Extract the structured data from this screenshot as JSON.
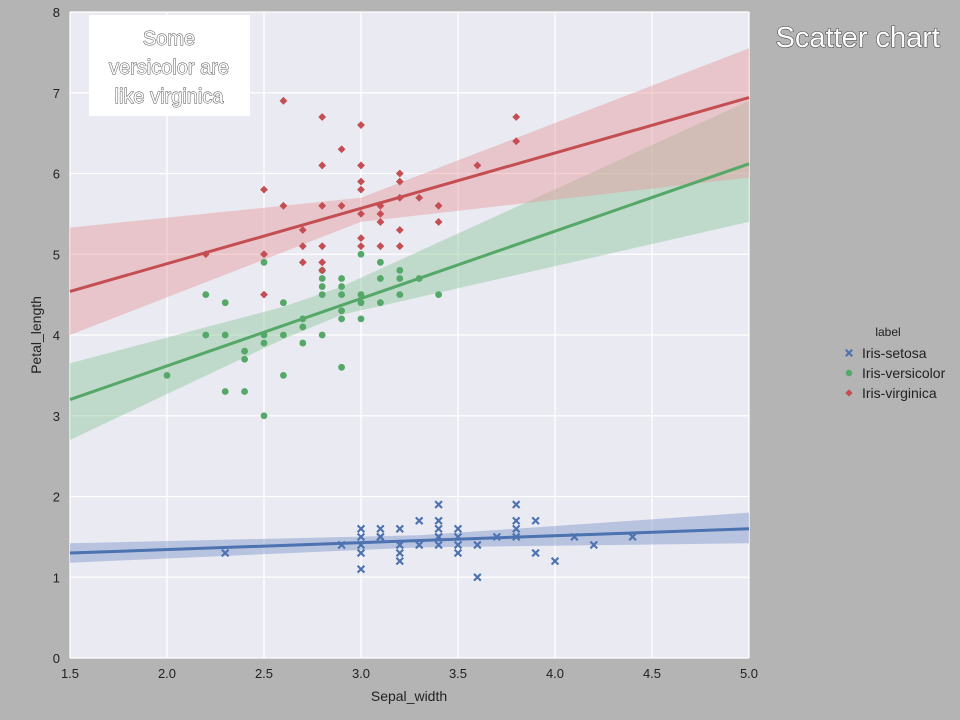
{
  "page_title": "Scatter chart",
  "annotation": {
    "lines": [
      "Some",
      "versicolor are",
      "like virginica"
    ]
  },
  "chart_data": {
    "type": "scatter",
    "title": "",
    "xlabel": "Sepal_width",
    "ylabel": "Petal_length",
    "xlim": [
      1.5,
      5.0
    ],
    "ylim": [
      0,
      8
    ],
    "xticks": [
      1.5,
      2.0,
      2.5,
      3.0,
      3.5,
      4.0,
      4.5,
      5.0
    ],
    "xtick_labels": [
      "1.5",
      "2.0",
      "2.5",
      "3.0",
      "3.5",
      "4.0",
      "4.5",
      "5.0"
    ],
    "yticks": [
      0,
      1,
      2,
      3,
      4,
      5,
      6,
      7,
      8
    ],
    "ytick_labels": [
      "0",
      "1",
      "2",
      "3",
      "4",
      "5",
      "6",
      "7",
      "8"
    ],
    "grid": true,
    "legend": {
      "title": "label",
      "placement": "right"
    },
    "series": [
      {
        "name": "Iris-setosa",
        "marker": "x",
        "color": "#4c72b0",
        "band_color": "#7d95c9",
        "points": [
          [
            2.3,
            1.3
          ],
          [
            2.9,
            1.4
          ],
          [
            3.0,
            1.6
          ],
          [
            3.0,
            1.4
          ],
          [
            3.0,
            1.3
          ],
          [
            3.0,
            1.1
          ],
          [
            3.0,
            1.5
          ],
          [
            3.1,
            1.5
          ],
          [
            3.1,
            1.6
          ],
          [
            3.1,
            1.5
          ],
          [
            3.2,
            1.6
          ],
          [
            3.2,
            1.3
          ],
          [
            3.2,
            1.2
          ],
          [
            3.2,
            1.4
          ],
          [
            3.3,
            1.7
          ],
          [
            3.3,
            1.4
          ],
          [
            3.4,
            1.9
          ],
          [
            3.4,
            1.7
          ],
          [
            3.4,
            1.6
          ],
          [
            3.4,
            1.5
          ],
          [
            3.4,
            1.4
          ],
          [
            3.4,
            1.5
          ],
          [
            3.5,
            1.6
          ],
          [
            3.5,
            1.3
          ],
          [
            3.5,
            1.4
          ],
          [
            3.5,
            1.5
          ],
          [
            3.6,
            1.0
          ],
          [
            3.6,
            1.4
          ],
          [
            3.7,
            1.5
          ],
          [
            3.8,
            1.9
          ],
          [
            3.8,
            1.7
          ],
          [
            3.8,
            1.6
          ],
          [
            3.8,
            1.5
          ],
          [
            3.9,
            1.7
          ],
          [
            3.9,
            1.3
          ],
          [
            4.0,
            1.2
          ],
          [
            4.1,
            1.5
          ],
          [
            4.2,
            1.4
          ],
          [
            4.4,
            1.5
          ]
        ],
        "regression": {
          "x": [
            1.5,
            5.0
          ],
          "y": [
            1.3,
            1.6
          ]
        },
        "band": {
          "x": [
            1.5,
            3.3,
            5.0
          ],
          "lower": [
            1.18,
            1.37,
            1.42
          ],
          "upper": [
            1.42,
            1.52,
            1.8
          ]
        }
      },
      {
        "name": "Iris-versicolor",
        "marker": "o",
        "color": "#55a868",
        "band_color": "#8cc79a",
        "points": [
          [
            2.0,
            3.5
          ],
          [
            2.2,
            4.5
          ],
          [
            2.2,
            4.0
          ],
          [
            2.3,
            4.4
          ],
          [
            2.3,
            4.0
          ],
          [
            2.3,
            3.3
          ],
          [
            2.4,
            3.8
          ],
          [
            2.4,
            3.7
          ],
          [
            2.4,
            3.3
          ],
          [
            2.5,
            4.9
          ],
          [
            2.5,
            4.0
          ],
          [
            2.5,
            3.9
          ],
          [
            2.5,
            3.0
          ],
          [
            2.6,
            4.4
          ],
          [
            2.6,
            4.0
          ],
          [
            2.6,
            3.5
          ],
          [
            2.7,
            4.2
          ],
          [
            2.7,
            4.1
          ],
          [
            2.7,
            3.9
          ],
          [
            2.8,
            4.8
          ],
          [
            2.8,
            4.7
          ],
          [
            2.8,
            4.6
          ],
          [
            2.8,
            4.5
          ],
          [
            2.8,
            4.0
          ],
          [
            2.9,
            4.7
          ],
          [
            2.9,
            4.6
          ],
          [
            2.9,
            4.5
          ],
          [
            2.9,
            4.3
          ],
          [
            2.9,
            4.2
          ],
          [
            2.9,
            3.6
          ],
          [
            3.0,
            5.0
          ],
          [
            3.0,
            4.5
          ],
          [
            3.0,
            4.4
          ],
          [
            3.0,
            4.2
          ],
          [
            3.1,
            4.9
          ],
          [
            3.1,
            4.7
          ],
          [
            3.1,
            4.4
          ],
          [
            3.2,
            4.8
          ],
          [
            3.2,
            4.7
          ],
          [
            3.2,
            4.5
          ],
          [
            3.3,
            4.7
          ],
          [
            3.4,
            4.5
          ]
        ],
        "regression": {
          "x": [
            1.5,
            5.0
          ],
          "y": [
            3.2,
            6.12
          ]
        },
        "band": {
          "x": [
            1.5,
            2.6,
            2.9,
            5.0
          ],
          "lower": [
            2.7,
            3.95,
            4.25,
            5.4
          ],
          "upper": [
            3.65,
            4.35,
            4.6,
            6.9
          ]
        }
      },
      {
        "name": "Iris-virginica",
        "marker": "D",
        "color": "#c44e52",
        "band_color": "#e69a9c",
        "points": [
          [
            2.2,
            5.0
          ],
          [
            2.5,
            5.8
          ],
          [
            2.5,
            5.0
          ],
          [
            2.5,
            4.5
          ],
          [
            2.6,
            6.9
          ],
          [
            2.6,
            5.6
          ],
          [
            2.7,
            5.3
          ],
          [
            2.7,
            5.1
          ],
          [
            2.7,
            4.9
          ],
          [
            2.8,
            6.7
          ],
          [
            2.8,
            6.1
          ],
          [
            2.8,
            5.6
          ],
          [
            2.8,
            5.1
          ],
          [
            2.8,
            4.9
          ],
          [
            2.8,
            4.8
          ],
          [
            2.9,
            6.3
          ],
          [
            2.9,
            5.6
          ],
          [
            3.0,
            6.6
          ],
          [
            3.0,
            6.1
          ],
          [
            3.0,
            5.8
          ],
          [
            3.0,
            5.9
          ],
          [
            3.0,
            5.5
          ],
          [
            3.0,
            5.2
          ],
          [
            3.0,
            5.1
          ],
          [
            3.1,
            5.6
          ],
          [
            3.1,
            5.5
          ],
          [
            3.1,
            5.4
          ],
          [
            3.1,
            5.1
          ],
          [
            3.2,
            6.0
          ],
          [
            3.2,
            5.9
          ],
          [
            3.2,
            5.7
          ],
          [
            3.2,
            5.3
          ],
          [
            3.2,
            5.1
          ],
          [
            3.3,
            5.7
          ],
          [
            3.4,
            5.6
          ],
          [
            3.4,
            5.4
          ],
          [
            3.6,
            6.1
          ],
          [
            3.8,
            6.7
          ],
          [
            3.8,
            6.4
          ]
        ],
        "regression": {
          "x": [
            1.5,
            5.0
          ],
          "y": [
            4.54,
            6.94
          ]
        },
        "band": {
          "x": [
            1.5,
            3.0,
            5.0
          ],
          "lower": [
            4.0,
            5.4,
            5.95
          ],
          "upper": [
            5.33,
            5.7,
            7.55
          ]
        }
      }
    ]
  }
}
